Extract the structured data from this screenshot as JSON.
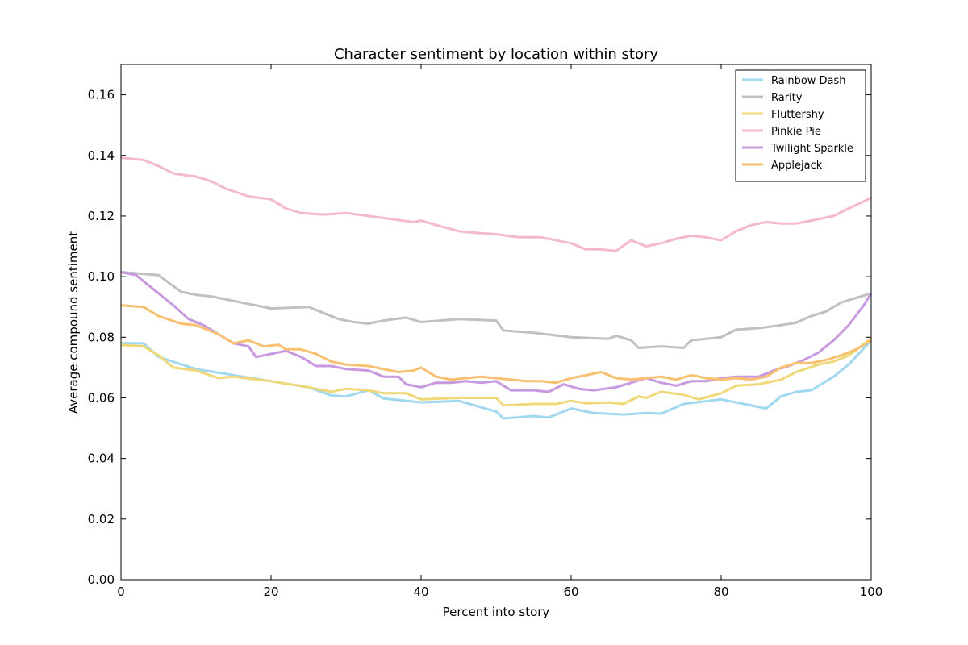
{
  "chart_data": {
    "type": "line",
    "title": "Character sentiment by location within story",
    "xlabel": "Percent into story",
    "ylabel": "Average compound sentiment",
    "xlim": [
      0,
      100
    ],
    "ylim": [
      0,
      0.17
    ],
    "xticks": [
      0,
      20,
      40,
      60,
      80,
      100
    ],
    "yticks": [
      0.0,
      0.02,
      0.04,
      0.06,
      0.08,
      0.1,
      0.12,
      0.14,
      0.16
    ],
    "grid": false,
    "legend_position": "top-right",
    "series": [
      {
        "name": "Rainbow Dash",
        "color": "#a0d8f0",
        "points": [
          [
            0,
            0.078
          ],
          [
            3,
            0.078
          ],
          [
            5,
            0.0735
          ],
          [
            10,
            0.0695
          ],
          [
            15,
            0.0675
          ],
          [
            20,
            0.0655
          ],
          [
            25,
            0.0635
          ],
          [
            28,
            0.0608
          ],
          [
            30,
            0.0605
          ],
          [
            33,
            0.0625
          ],
          [
            35,
            0.0598
          ],
          [
            40,
            0.0585
          ],
          [
            45,
            0.059
          ],
          [
            50,
            0.0555
          ],
          [
            51,
            0.0532
          ],
          [
            55,
            0.054
          ],
          [
            57,
            0.0535
          ],
          [
            60,
            0.0565
          ],
          [
            63,
            0.055
          ],
          [
            67,
            0.0545
          ],
          [
            70,
            0.055
          ],
          [
            72,
            0.0548
          ],
          [
            75,
            0.058
          ],
          [
            80,
            0.0595
          ],
          [
            84,
            0.0575
          ],
          [
            86,
            0.0565
          ],
          [
            88,
            0.0605
          ],
          [
            90,
            0.062
          ],
          [
            92,
            0.0625
          ],
          [
            95,
            0.067
          ],
          [
            97,
            0.071
          ],
          [
            100,
            0.079
          ]
        ]
      },
      {
        "name": "Rarity",
        "color": "#c0c0c0",
        "points": [
          [
            0,
            0.1015
          ],
          [
            5,
            0.1005
          ],
          [
            8,
            0.095
          ],
          [
            10,
            0.094
          ],
          [
            12,
            0.0935
          ],
          [
            15,
            0.092
          ],
          [
            18,
            0.0905
          ],
          [
            20,
            0.0895
          ],
          [
            25,
            0.09
          ],
          [
            29,
            0.086
          ],
          [
            31,
            0.085
          ],
          [
            33,
            0.0845
          ],
          [
            35,
            0.0855
          ],
          [
            38,
            0.0865
          ],
          [
            40,
            0.085
          ],
          [
            45,
            0.086
          ],
          [
            50,
            0.0855
          ],
          [
            51,
            0.0822
          ],
          [
            55,
            0.0815
          ],
          [
            60,
            0.08
          ],
          [
            65,
            0.0795
          ],
          [
            66,
            0.0805
          ],
          [
            68,
            0.079
          ],
          [
            69,
            0.0765
          ],
          [
            72,
            0.077
          ],
          [
            75,
            0.0765
          ],
          [
            76,
            0.079
          ],
          [
            80,
            0.08
          ],
          [
            82,
            0.0825
          ],
          [
            85,
            0.083
          ],
          [
            88,
            0.084
          ],
          [
            90,
            0.0848
          ],
          [
            92,
            0.087
          ],
          [
            94,
            0.0885
          ],
          [
            96,
            0.0915
          ],
          [
            100,
            0.0945
          ]
        ]
      },
      {
        "name": "Fluttershy",
        "color": "#f0d878",
        "points": [
          [
            0,
            0.0775
          ],
          [
            3,
            0.077
          ],
          [
            5,
            0.074
          ],
          [
            7,
            0.07
          ],
          [
            10,
            0.069
          ],
          [
            13,
            0.0665
          ],
          [
            15,
            0.067
          ],
          [
            20,
            0.0655
          ],
          [
            25,
            0.0635
          ],
          [
            28,
            0.062
          ],
          [
            30,
            0.063
          ],
          [
            33,
            0.0625
          ],
          [
            35,
            0.0615
          ],
          [
            38,
            0.0615
          ],
          [
            40,
            0.0595
          ],
          [
            45,
            0.06
          ],
          [
            50,
            0.06
          ],
          [
            51,
            0.0575
          ],
          [
            55,
            0.058
          ],
          [
            58,
            0.058
          ],
          [
            60,
            0.059
          ],
          [
            62,
            0.0582
          ],
          [
            65,
            0.0585
          ],
          [
            67,
            0.058
          ],
          [
            69,
            0.0605
          ],
          [
            70,
            0.06
          ],
          [
            72,
            0.062
          ],
          [
            75,
            0.061
          ],
          [
            77,
            0.0595
          ],
          [
            80,
            0.0615
          ],
          [
            82,
            0.064
          ],
          [
            85,
            0.0645
          ],
          [
            88,
            0.066
          ],
          [
            90,
            0.0685
          ],
          [
            93,
            0.071
          ],
          [
            95,
            0.072
          ],
          [
            97,
            0.074
          ],
          [
            100,
            0.0795
          ]
        ]
      },
      {
        "name": "Pinkie Pie",
        "color": "#f4b8d0",
        "points": [
          [
            0,
            0.1392
          ],
          [
            3,
            0.1385
          ],
          [
            5,
            0.1365
          ],
          [
            7,
            0.134
          ],
          [
            10,
            0.133
          ],
          [
            12,
            0.1315
          ],
          [
            14,
            0.129
          ],
          [
            17,
            0.1265
          ],
          [
            20,
            0.1255
          ],
          [
            22,
            0.1225
          ],
          [
            24,
            0.121
          ],
          [
            27,
            0.1205
          ],
          [
            30,
            0.121
          ],
          [
            33,
            0.12
          ],
          [
            36,
            0.119
          ],
          [
            39,
            0.118
          ],
          [
            40,
            0.1185
          ],
          [
            42,
            0.117
          ],
          [
            45,
            0.115
          ],
          [
            47,
            0.1145
          ],
          [
            50,
            0.114
          ],
          [
            53,
            0.113
          ],
          [
            56,
            0.113
          ],
          [
            60,
            0.111
          ],
          [
            62,
            0.109
          ],
          [
            64,
            0.109
          ],
          [
            66,
            0.1085
          ],
          [
            68,
            0.112
          ],
          [
            70,
            0.11
          ],
          [
            72,
            0.111
          ],
          [
            74,
            0.1125
          ],
          [
            76,
            0.1135
          ],
          [
            78,
            0.113
          ],
          [
            80,
            0.112
          ],
          [
            82,
            0.115
          ],
          [
            84,
            0.117
          ],
          [
            86,
            0.118
          ],
          [
            88,
            0.1175
          ],
          [
            90,
            0.1175
          ],
          [
            92,
            0.1185
          ],
          [
            95,
            0.12
          ],
          [
            97,
            0.1225
          ],
          [
            100,
            0.126
          ]
        ]
      },
      {
        "name": "Twilight Sparkle",
        "color": "#c898e0",
        "points": [
          [
            0,
            0.1015
          ],
          [
            2,
            0.1005
          ],
          [
            4,
            0.0965
          ],
          [
            7,
            0.0905
          ],
          [
            9,
            0.086
          ],
          [
            11,
            0.084
          ],
          [
            13,
            0.081
          ],
          [
            15,
            0.078
          ],
          [
            17,
            0.077
          ],
          [
            18,
            0.0735
          ],
          [
            20,
            0.0745
          ],
          [
            22,
            0.0755
          ],
          [
            24,
            0.0735
          ],
          [
            26,
            0.0705
          ],
          [
            28,
            0.0705
          ],
          [
            30,
            0.0695
          ],
          [
            33,
            0.069
          ],
          [
            35,
            0.067
          ],
          [
            37,
            0.067
          ],
          [
            38,
            0.0645
          ],
          [
            40,
            0.0635
          ],
          [
            42,
            0.065
          ],
          [
            44,
            0.065
          ],
          [
            46,
            0.0655
          ],
          [
            48,
            0.065
          ],
          [
            50,
            0.0655
          ],
          [
            52,
            0.0625
          ],
          [
            55,
            0.0625
          ],
          [
            57,
            0.062
          ],
          [
            59,
            0.0645
          ],
          [
            61,
            0.063
          ],
          [
            63,
            0.0625
          ],
          [
            66,
            0.0635
          ],
          [
            68,
            0.065
          ],
          [
            70,
            0.0665
          ],
          [
            72,
            0.065
          ],
          [
            74,
            0.064
          ],
          [
            76,
            0.0655
          ],
          [
            78,
            0.0655
          ],
          [
            80,
            0.0665
          ],
          [
            82,
            0.067
          ],
          [
            85,
            0.067
          ],
          [
            87,
            0.069
          ],
          [
            89,
            0.0705
          ],
          [
            91,
            0.0725
          ],
          [
            93,
            0.075
          ],
          [
            95,
            0.079
          ],
          [
            97,
            0.084
          ],
          [
            99,
            0.0905
          ],
          [
            100,
            0.0945
          ]
        ]
      },
      {
        "name": "Applejack",
        "color": "#f8c070",
        "points": [
          [
            0,
            0.0905
          ],
          [
            3,
            0.09
          ],
          [
            5,
            0.087
          ],
          [
            8,
            0.0845
          ],
          [
            10,
            0.084
          ],
          [
            13,
            0.081
          ],
          [
            15,
            0.078
          ],
          [
            17,
            0.079
          ],
          [
            19,
            0.077
          ],
          [
            21,
            0.0775
          ],
          [
            22,
            0.076
          ],
          [
            24,
            0.076
          ],
          [
            26,
            0.0745
          ],
          [
            28,
            0.072
          ],
          [
            30,
            0.071
          ],
          [
            33,
            0.0705
          ],
          [
            35,
            0.0695
          ],
          [
            37,
            0.0685
          ],
          [
            39,
            0.069
          ],
          [
            40,
            0.07
          ],
          [
            42,
            0.067
          ],
          [
            44,
            0.066
          ],
          [
            46,
            0.0665
          ],
          [
            48,
            0.067
          ],
          [
            50,
            0.0665
          ],
          [
            52,
            0.066
          ],
          [
            54,
            0.0655
          ],
          [
            56,
            0.0655
          ],
          [
            58,
            0.065
          ],
          [
            60,
            0.0665
          ],
          [
            62,
            0.0675
          ],
          [
            64,
            0.0685
          ],
          [
            66,
            0.0665
          ],
          [
            68,
            0.066
          ],
          [
            70,
            0.0665
          ],
          [
            72,
            0.067
          ],
          [
            74,
            0.066
          ],
          [
            76,
            0.0675
          ],
          [
            78,
            0.0665
          ],
          [
            80,
            0.066
          ],
          [
            82,
            0.0665
          ],
          [
            84,
            0.066
          ],
          [
            86,
            0.067
          ],
          [
            88,
            0.07
          ],
          [
            90,
            0.0715
          ],
          [
            92,
            0.0715
          ],
          [
            94,
            0.0725
          ],
          [
            96,
            0.074
          ],
          [
            98,
            0.076
          ],
          [
            100,
            0.079
          ]
        ]
      }
    ]
  }
}
